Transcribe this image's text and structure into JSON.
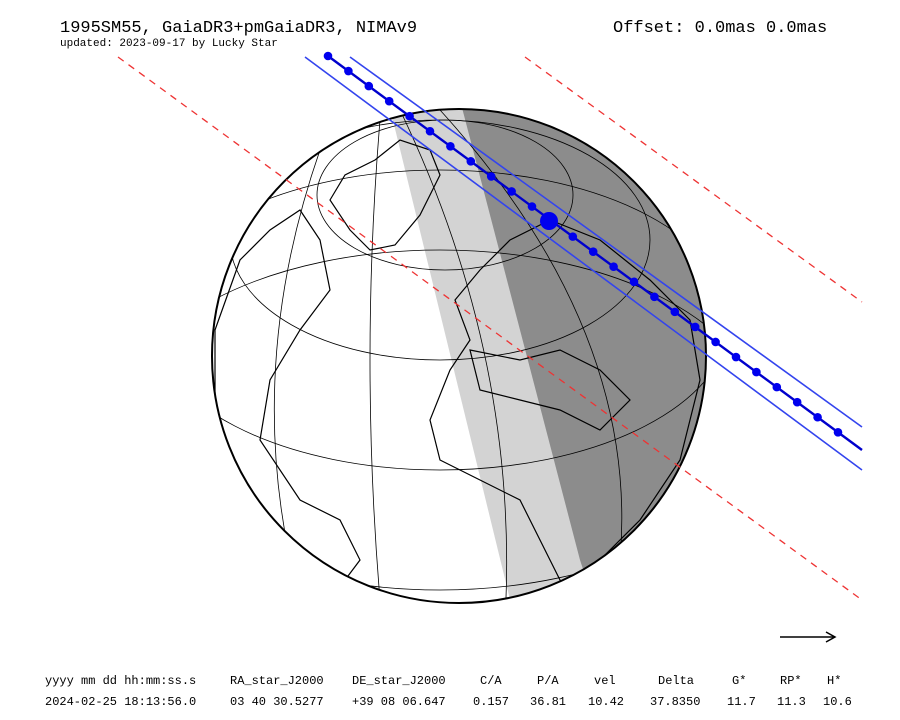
{
  "header": {
    "title": "1995SM55, GaiaDR3+pmGaiaDR3, NIMAv9",
    "subtitle": "updated: 2023-09-17 by Lucky Star",
    "offset": "Offset: 0.0mas 0.0mas"
  },
  "table": {
    "columns": [
      "yyyy mm dd hh:mm:ss.s",
      "RA_star_J2000",
      "DE_star_J2000",
      "C/A",
      "P/A",
      "vel",
      "Delta",
      "G*",
      "RP*",
      "H*"
    ],
    "rows": [
      [
        "2024-02-25 18:13:56.0",
        "03 40 30.5277",
        "+39 08 06.647",
        "0.157",
        "36.81",
        "10.42",
        "37.8350",
        "11.7",
        "11.3",
        "10.6"
      ]
    ]
  }
}
